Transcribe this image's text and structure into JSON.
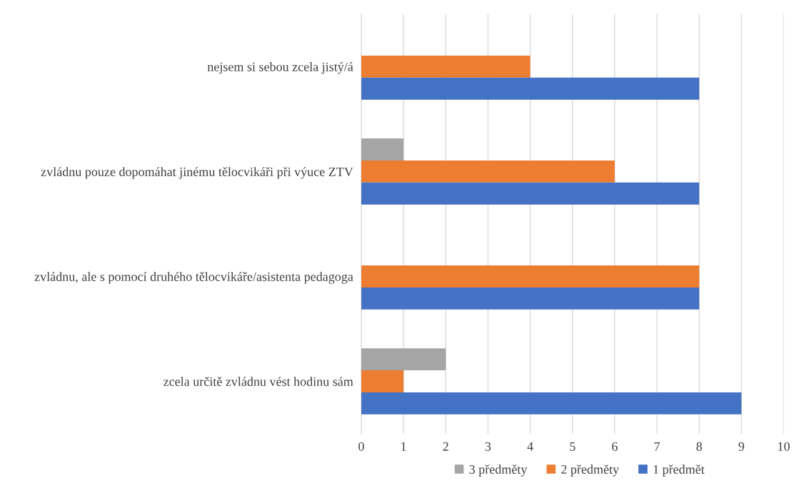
{
  "chart_data": {
    "type": "bar",
    "orientation": "horizontal",
    "categories": [
      "nejsem si sebou zcela jistý/á",
      "zvládnu pouze dopomáhat jinému tělocvikáři při výuce ZTV",
      "zvládnu, ale s pomocí druhého tělocvikáře/asistenta pedagoga",
      "zcela určitě zvládnu vést hodinu sám"
    ],
    "series": [
      {
        "name": "3 předměty",
        "color": "#a5a5a5",
        "values": [
          null,
          1,
          null,
          2
        ]
      },
      {
        "name": "2 předměty",
        "color": "#ed7d31",
        "values": [
          4,
          6,
          8,
          1
        ]
      },
      {
        "name": "1 předmět",
        "color": "#4472c4",
        "values": [
          8,
          8,
          8,
          9
        ]
      }
    ],
    "xlim": [
      0,
      10
    ],
    "xticks": [
      0,
      1,
      2,
      3,
      4,
      5,
      6,
      7,
      8,
      9,
      10
    ],
    "grid": "x",
    "legend": "bottom"
  }
}
